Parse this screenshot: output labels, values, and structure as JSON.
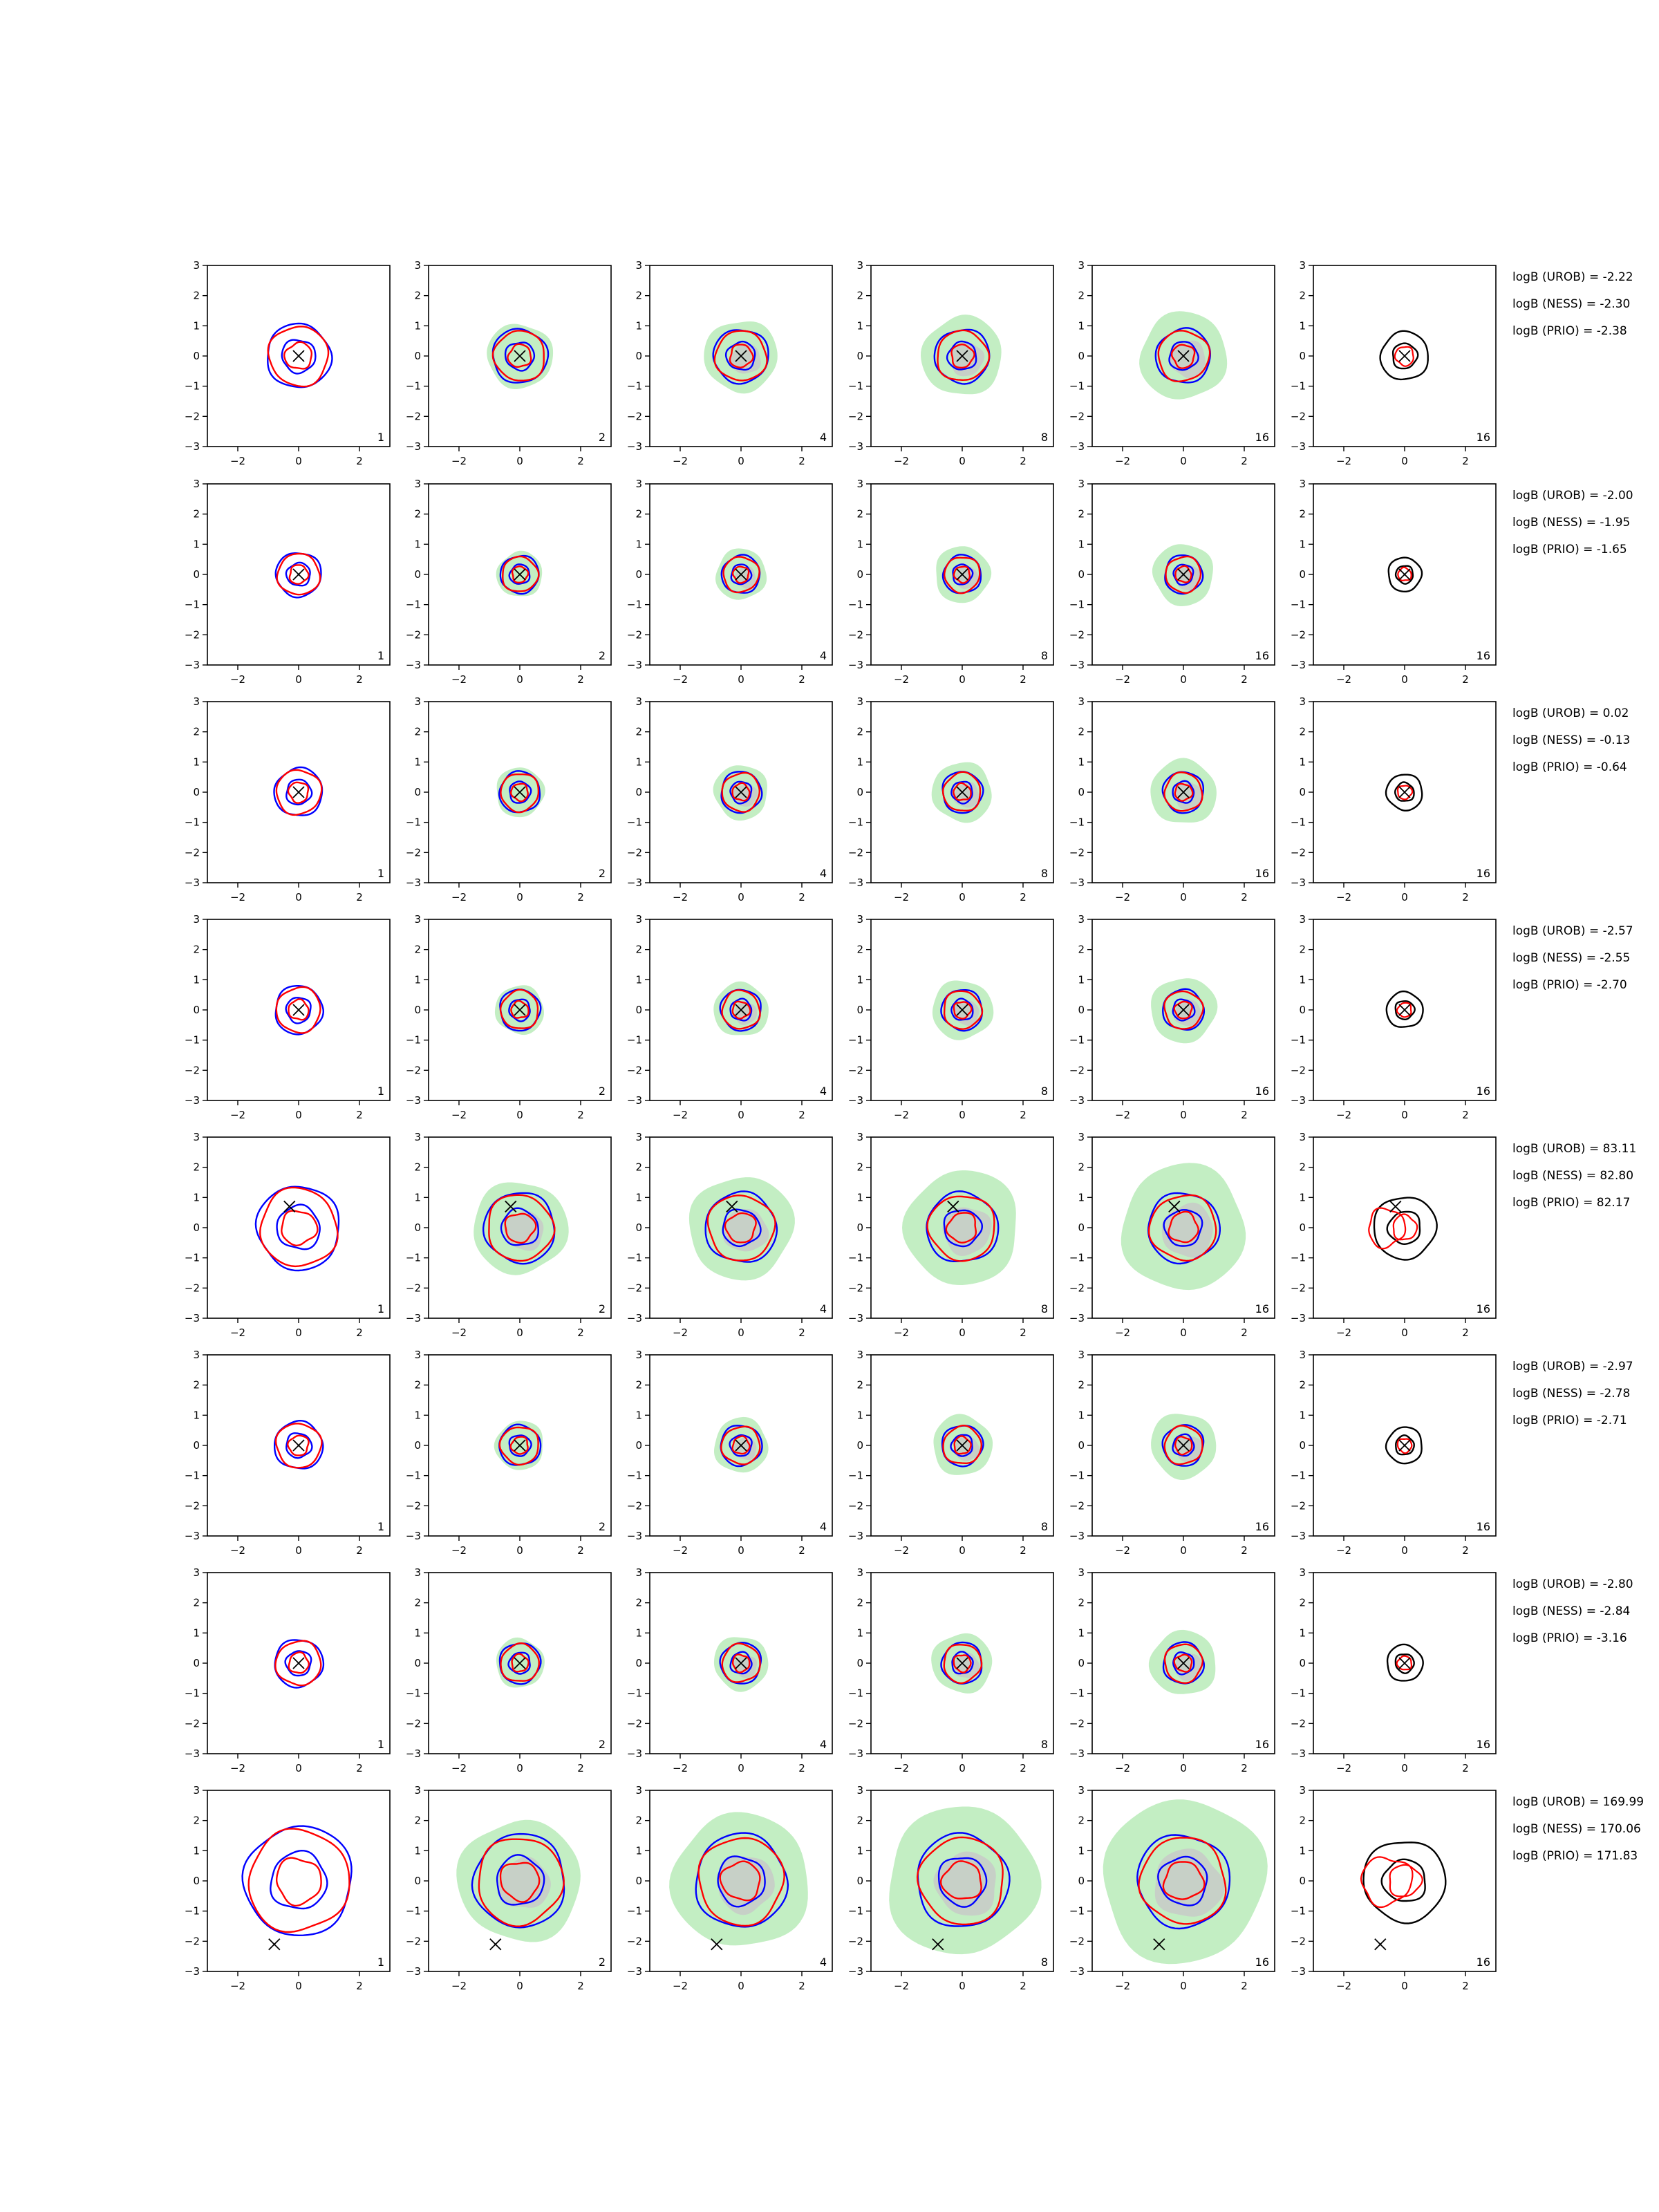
{
  "chart_data": {
    "type": "contour-grid",
    "rows": 8,
    "cols": 6,
    "xlim": [
      -3,
      3
    ],
    "ylim": [
      -3,
      3
    ],
    "xticks": [
      "−2",
      "0",
      "2"
    ],
    "yticks": [
      "3",
      "2",
      "1",
      "0",
      "−1",
      "−2",
      "−3"
    ],
    "column_labels": [
      "1",
      "2",
      "4",
      "8",
      "16",
      "16"
    ],
    "colors": {
      "blue": "#0000ff",
      "red": "#ff0000",
      "black": "#000000",
      "green_fill": "#b9ebb9",
      "grey_fill": "#c8c8c8"
    },
    "row_spreads": [
      1.0,
      0.7,
      0.75,
      0.75,
      1.3,
      0.75,
      0.75,
      1.7
    ],
    "markers": [
      {
        "row": 1,
        "x": 0.0,
        "y": 0.0
      },
      {
        "row": 2,
        "x": 0.0,
        "y": 0.0
      },
      {
        "row": 3,
        "x": 0.0,
        "y": 0.0
      },
      {
        "row": 4,
        "x": 0.0,
        "y": 0.0
      },
      {
        "row": 5,
        "x": -0.3,
        "y": 0.7
      },
      {
        "row": 6,
        "x": 0.0,
        "y": 0.0
      },
      {
        "row": 7,
        "x": 0.0,
        "y": 0.0
      },
      {
        "row": 8,
        "x": -0.8,
        "y": -2.1
      }
    ],
    "bayes_factors": [
      [
        "logB (UROB) = -2.22",
        "logB (NESS) = -2.30",
        "logB (PRIO) = -2.38"
      ],
      [
        "logB (UROB) = -2.00",
        "logB (NESS) = -1.95",
        "logB (PRIO) = -1.65"
      ],
      [
        "logB (UROB) = 0.02",
        "logB (NESS) = -0.13",
        "logB (PRIO) = -0.64"
      ],
      [
        "logB (UROB) = -2.57",
        "logB (NESS) = -2.55",
        "logB (PRIO) = -2.70"
      ],
      [
        "logB (UROB) = 83.11",
        "logB (NESS) = 82.80",
        "logB (PRIO) = 82.17"
      ],
      [
        "logB (UROB) = -2.97",
        "logB (NESS) = -2.78",
        "logB (PRIO) = -2.71"
      ],
      [
        "logB (UROB) = -2.80",
        "logB (NESS) = -2.84",
        "logB (PRIO) = -3.16"
      ],
      [
        "logB (UROB) = 169.99",
        "logB (NESS) = 170.06",
        "logB (PRIO) = 171.83"
      ]
    ]
  }
}
